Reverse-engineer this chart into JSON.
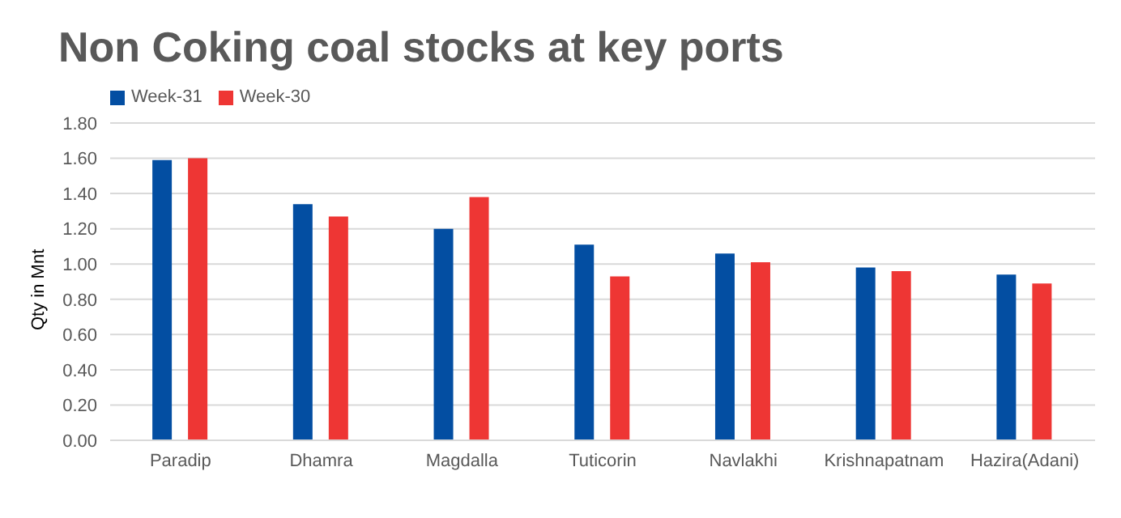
{
  "chart_data": {
    "type": "bar",
    "title": "Non Coking coal stocks at key ports",
    "ylabel": "Qty in Mnt",
    "categories": [
      "Paradip",
      "Dhamra",
      "Magdalla",
      "Tuticorin",
      "Navlakhi",
      "Krishnapatnam",
      "Hazira(Adani)"
    ],
    "series": [
      {
        "name": "Week-31",
        "color": "#034ea2",
        "values": [
          1.59,
          1.34,
          1.2,
          1.11,
          1.06,
          0.98,
          0.94
        ]
      },
      {
        "name": "Week-30",
        "color": "#ee3634",
        "values": [
          1.6,
          1.27,
          1.38,
          0.93,
          1.01,
          0.96,
          0.89
        ]
      }
    ],
    "ylim": [
      0,
      1.8
    ],
    "yticks": [
      {
        "value": 0,
        "label": "0.00"
      },
      {
        "value": 0.2,
        "label": "0.20"
      },
      {
        "value": 0.4,
        "label": "0.40"
      },
      {
        "value": 0.6,
        "label": "0.60"
      },
      {
        "value": 0.8,
        "label": "0.80"
      },
      {
        "value": 1,
        "label": "1.00"
      },
      {
        "value": 1.2,
        "label": "1.20"
      },
      {
        "value": 1.4,
        "label": "1.40"
      },
      {
        "value": 1.6,
        "label": "1.60"
      },
      {
        "value": 1.8,
        "label": "1.80"
      }
    ],
    "grid": "y",
    "legend": "top left"
  }
}
